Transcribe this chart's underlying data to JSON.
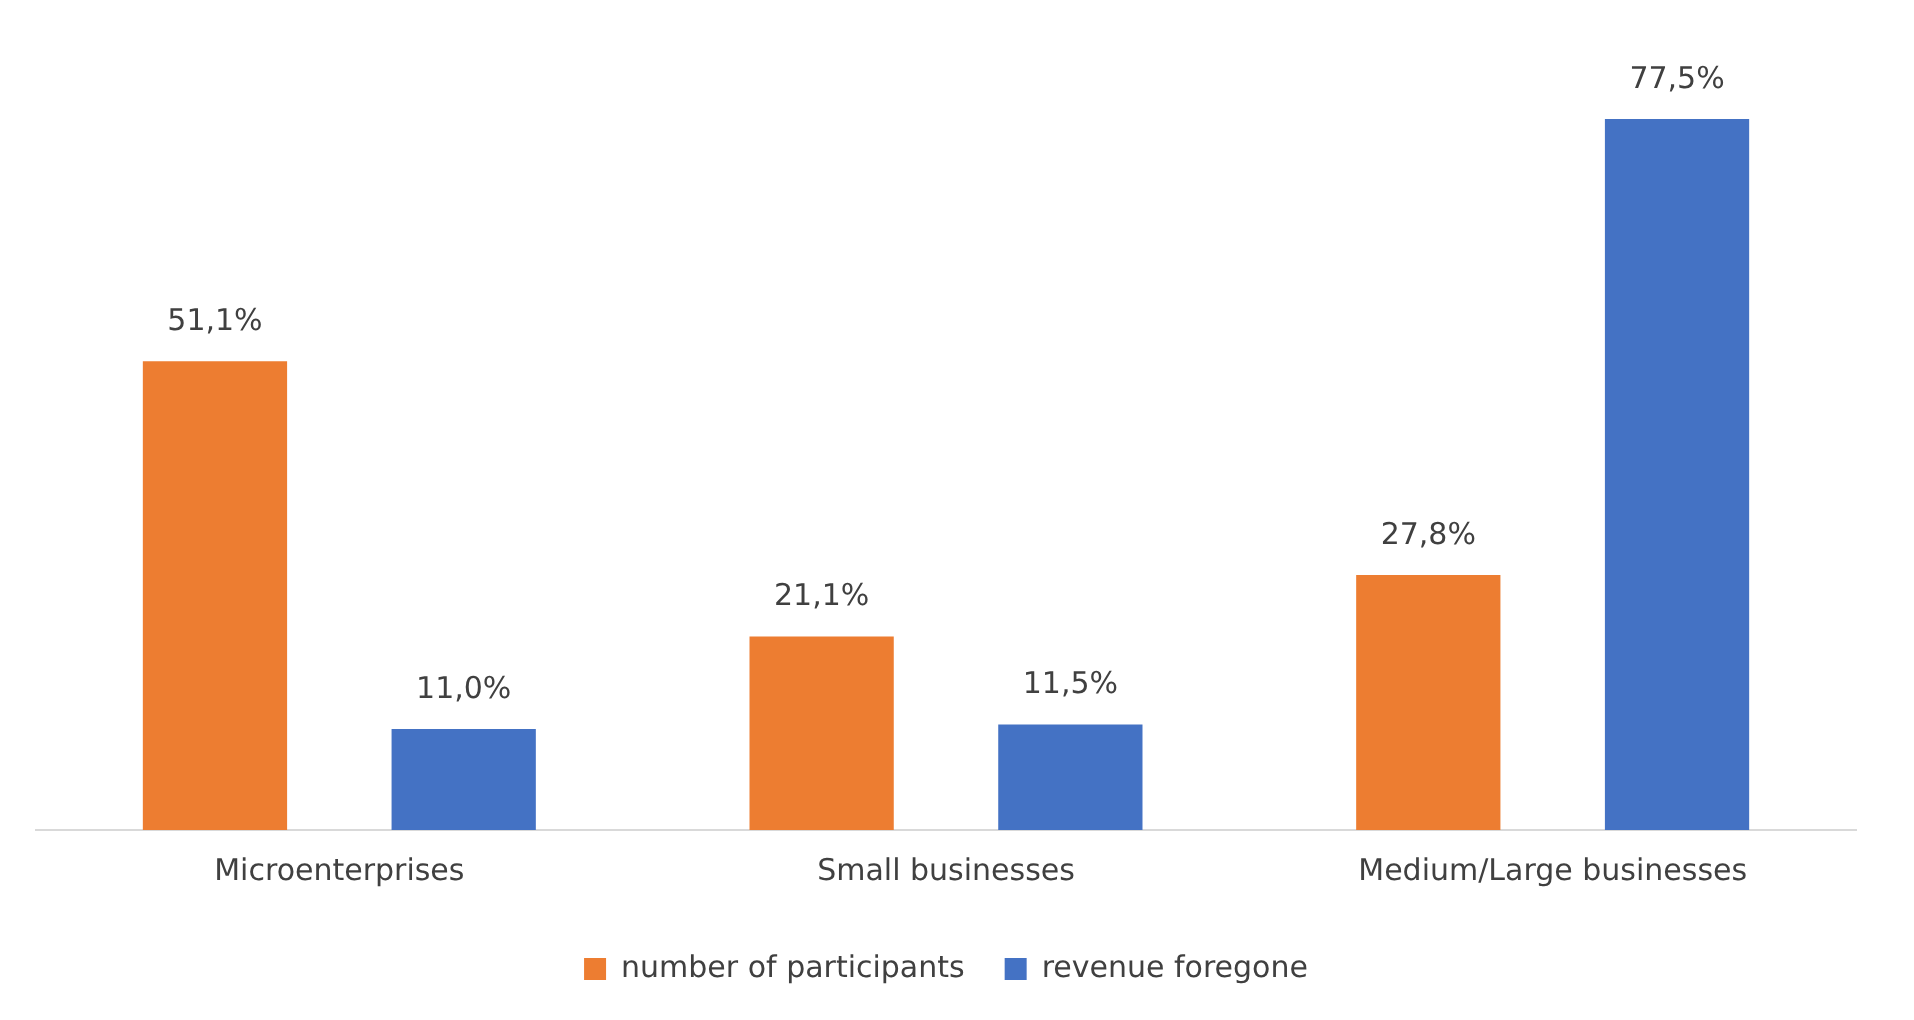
{
  "chart_data": {
    "type": "bar",
    "categories": [
      "Microenterprises",
      "Small businesses",
      "Medium/Large businesses"
    ],
    "series": [
      {
        "name": "number of participants",
        "color": "#ed7d31",
        "values": [
          51.1,
          21.1,
          27.8
        ],
        "value_labels": [
          "51,1%",
          "21,1%",
          "27,8%"
        ]
      },
      {
        "name": "revenue foregone",
        "color": "#4472c4",
        "values": [
          11.0,
          11.5,
          77.5
        ],
        "value_labels": [
          "11,0%",
          "11,5%",
          "77,5%"
        ]
      }
    ],
    "legend": "bottom",
    "grid": false
  }
}
